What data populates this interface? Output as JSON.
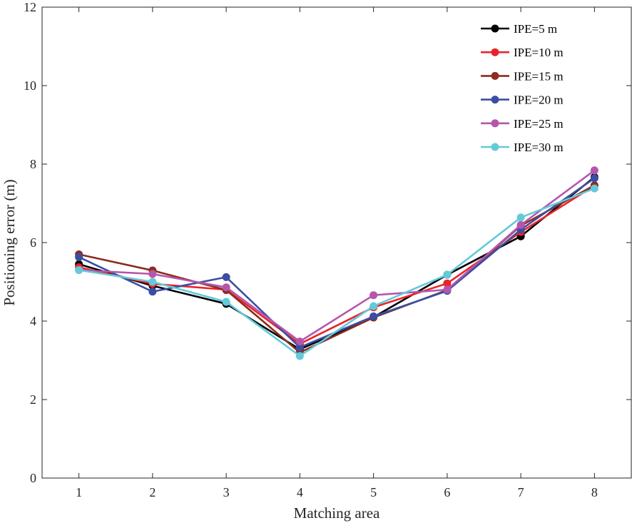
{
  "chart_data": {
    "type": "line",
    "xlabel": "Matching area",
    "ylabel": "Positioning error (m)",
    "x": [
      1,
      2,
      3,
      4,
      5,
      6,
      7,
      8
    ],
    "xlim": [
      0.5,
      8.5
    ],
    "ylim": [
      0,
      12
    ],
    "xticks": [
      "1",
      "2",
      "3",
      "4",
      "5",
      "6",
      "7",
      "8"
    ],
    "yticks": [
      "0",
      "2",
      "4",
      "6",
      "8",
      "10",
      "12"
    ],
    "grid": false,
    "legend_position": "top-right",
    "series": [
      {
        "name": "IPE=5 m",
        "color": "#000000",
        "values": [
          5.45,
          4.9,
          4.44,
          3.28,
          4.1,
          5.18,
          6.16,
          7.67
        ]
      },
      {
        "name": "IPE=10 m",
        "color": "#e8242b",
        "values": [
          5.37,
          4.95,
          4.8,
          3.42,
          4.35,
          4.96,
          6.27,
          7.45
        ]
      },
      {
        "name": "IPE=15 m",
        "color": "#8b2d1e",
        "values": [
          5.7,
          5.29,
          4.79,
          3.2,
          4.09,
          4.79,
          6.43,
          7.46
        ]
      },
      {
        "name": "IPE=20 m",
        "color": "#3a4ea3",
        "values": [
          5.63,
          4.75,
          5.12,
          3.33,
          4.12,
          4.77,
          6.33,
          7.64
        ]
      },
      {
        "name": "IPE=25 m",
        "color": "#b556ad",
        "values": [
          5.3,
          5.2,
          4.86,
          3.48,
          4.66,
          4.8,
          6.45,
          7.84
        ]
      },
      {
        "name": "IPE=30 m",
        "color": "#63cad9",
        "values": [
          5.3,
          5.0,
          4.49,
          3.11,
          4.38,
          5.18,
          6.64,
          7.38
        ]
      }
    ]
  }
}
